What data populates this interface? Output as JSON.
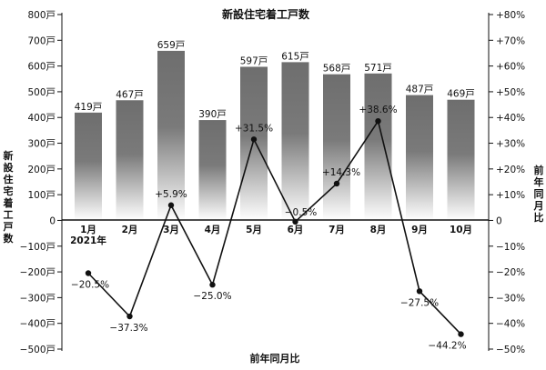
{
  "chart_data": {
    "type": "bar",
    "title": "新設住宅着工戸数",
    "xlabel": "前年同月比",
    "ylabel": "新設住宅着工戸数",
    "y2label": "前年同月比",
    "year_label": "2021年",
    "categories": [
      "1月",
      "2月",
      "3月",
      "4月",
      "5月",
      "6月",
      "7月",
      "8月",
      "9月",
      "10月"
    ],
    "ylim": [
      -500,
      800
    ],
    "y2lim": [
      -50,
      80
    ],
    "yticks": [
      "800戸",
      "700戸",
      "600戸",
      "500戸",
      "400戸",
      "300戸",
      "200戸",
      "100戸",
      "0",
      "−100戸",
      "−200戸",
      "−300戸",
      "−400戸",
      "−500戸"
    ],
    "y2ticks": [
      "+80%",
      "+70%",
      "+60%",
      "+50%",
      "+40%",
      "+30%",
      "+20%",
      "+10%",
      "0",
      "−10%",
      "−20%",
      "−30%",
      "−40%",
      "−50%"
    ],
    "grid": false,
    "bar_color": "#6e6e6e",
    "line_color": "#111111",
    "series": [
      {
        "type": "bar",
        "axis": "left",
        "values": [
          419,
          467,
          659,
          390,
          597,
          615,
          568,
          571,
          487,
          469
        ],
        "labels": [
          "419戸",
          "467戸",
          "659戸",
          "390戸",
          "597戸",
          "615戸",
          "568戸",
          "571戸",
          "487戸",
          "469戸"
        ]
      },
      {
        "type": "line",
        "axis": "right",
        "values": [
          -20.5,
          -37.3,
          5.9,
          -25.0,
          31.5,
          -0.5,
          14.3,
          38.6,
          -27.5,
          -44.2
        ],
        "labels": [
          "−20.5%",
          "−37.3%",
          "+5.9%",
          "−25.0%",
          "+31.5%",
          "−0.5%",
          "+14.3%",
          "+38.6%",
          "−27.5%",
          "−44.2%"
        ]
      }
    ]
  }
}
